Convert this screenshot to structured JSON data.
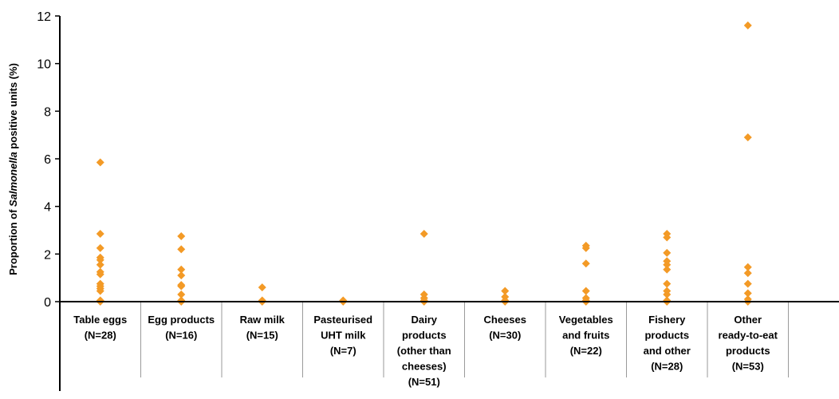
{
  "chart_data": {
    "type": "scatter",
    "ylabel": {
      "prefix": "Proportion of ",
      "italic": "Salmonella",
      "suffix": "  positive units (%)"
    },
    "ylim": [
      0,
      12
    ],
    "yticks": [
      0,
      2,
      4,
      6,
      8,
      10,
      12
    ],
    "grid": false,
    "marker_color": "#f39a26",
    "categories": [
      {
        "lines": [
          "Table eggs",
          "(N=28)"
        ],
        "values": [
          5.85,
          2.85,
          2.25,
          1.85,
          1.75,
          1.55,
          1.25,
          1.15,
          0.75,
          0.65,
          0.55,
          0.45,
          0.05,
          0.0
        ]
      },
      {
        "lines": [
          "Egg products",
          "(N=16)"
        ],
        "values": [
          2.75,
          2.2,
          1.35,
          1.1,
          0.7,
          0.65,
          0.3,
          0.05,
          0.0
        ]
      },
      {
        "lines": [
          "Raw milk",
          "(N=15)"
        ],
        "values": [
          0.6,
          0.05,
          0.0
        ]
      },
      {
        "lines": [
          "Pasteurised",
          "UHT milk",
          "(N=7)"
        ],
        "values": [
          0.05,
          0.0
        ]
      },
      {
        "lines": [
          "Dairy",
          "products",
          "(other than",
          "cheeses)",
          "(N=51)"
        ],
        "values": [
          2.85,
          0.3,
          0.15,
          0.05,
          0.0
        ]
      },
      {
        "lines": [
          "Cheeses",
          "(N=30)"
        ],
        "values": [
          0.45,
          0.2,
          0.05,
          0.0
        ]
      },
      {
        "lines": [
          "Vegetables",
          "and fruits",
          "(N=22)"
        ],
        "values": [
          2.35,
          2.25,
          1.6,
          0.45,
          0.15,
          0.05,
          0.0
        ]
      },
      {
        "lines": [
          "Fishery",
          "products",
          "and other",
          "(N=28)"
        ],
        "values": [
          2.85,
          2.7,
          2.05,
          1.7,
          1.55,
          1.35,
          0.75,
          0.45,
          0.3,
          0.05,
          0.0
        ]
      },
      {
        "lines": [
          "Other",
          "ready-to-eat",
          "products",
          "(N=53)"
        ],
        "values": [
          11.6,
          6.9,
          1.45,
          1.2,
          0.75,
          0.35,
          0.1,
          0.0
        ]
      }
    ]
  }
}
